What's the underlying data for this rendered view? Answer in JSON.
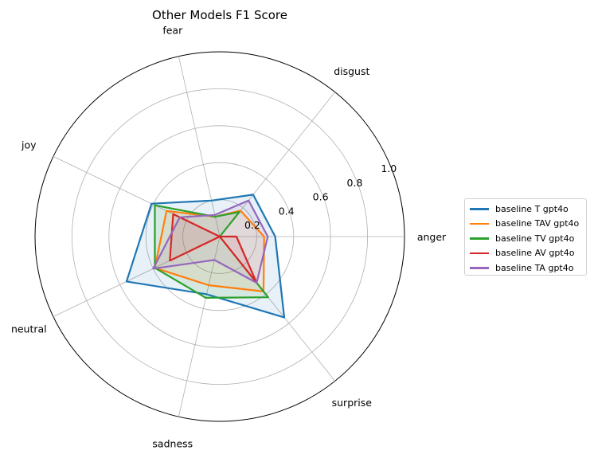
{
  "chart_data": {
    "type": "radar",
    "title": "Other Models F1 Score",
    "categories": [
      "anger",
      "disgust",
      "fear",
      "joy",
      "neutral",
      "sadness",
      "surprise"
    ],
    "rlim": [
      0,
      1.0
    ],
    "radial_ticks": [
      0.2,
      0.4,
      0.6,
      0.8,
      1.0
    ],
    "radial_tick_labels": [
      "0.2",
      "0.4",
      "0.6",
      "0.8",
      "1.0"
    ],
    "grid": true,
    "legend_position": "right",
    "series": [
      {
        "name": "baseline T gpt4o",
        "color": "#1f77b4",
        "values": [
          0.3,
          0.29,
          0.2,
          0.41,
          0.56,
          0.32,
          0.56
        ]
      },
      {
        "name": "baseline TAV gpt4o",
        "color": "#ff7f0e",
        "values": [
          0.24,
          0.18,
          0.11,
          0.32,
          0.39,
          0.27,
          0.38
        ]
      },
      {
        "name": "baseline TV gpt4o",
        "color": "#2ca02c",
        "values": [
          0.0,
          0.17,
          0.11,
          0.39,
          0.39,
          0.34,
          0.42
        ]
      },
      {
        "name": "baseline AV gpt4o",
        "color": "#d62728",
        "values": [
          0.09,
          0.0,
          0.0,
          0.28,
          0.3,
          0.0,
          0.32
        ]
      },
      {
        "name": "baseline TA gpt4o",
        "color": "#9467bd",
        "values": [
          0.26,
          0.25,
          0.12,
          0.24,
          0.4,
          0.13,
          0.32
        ]
      }
    ]
  }
}
